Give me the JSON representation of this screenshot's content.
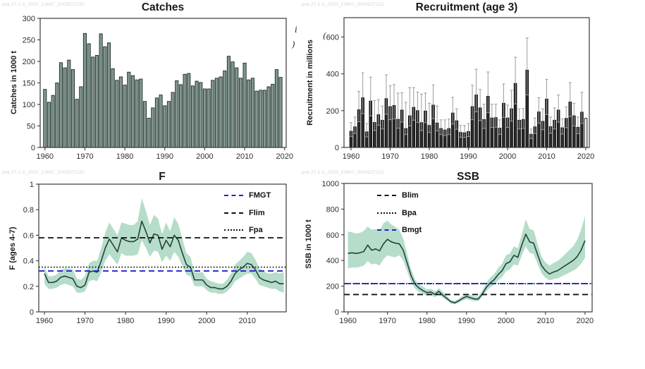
{
  "watermark": {
    "text": "pok.27.1-2_2020_13697_2005527132"
  },
  "stray": {
    "glyphs": [
      "i",
      ")",
      "("
    ]
  },
  "colors": {
    "catch_bar_fill": "#80978f",
    "catch_bar_stroke": "#1f2d29",
    "recr_bar_fill": "#2d2d2d",
    "recr_bar_stroke": "#000000",
    "recr_whisker": "#9b9b9b",
    "recr_open_bar_fill": "#ffffff",
    "band": "#b5ddca",
    "series_line": "#26413b",
    "ref_blue": "#2222cc",
    "ref_black": "#111111",
    "axis": "#3a3a3a",
    "tick_text": "#2e2e2e",
    "title_text": "#1a1a1a"
  },
  "chart_data": [
    {
      "type": "bar",
      "title": "Catches",
      "ylabel": "Catches in 1000 t",
      "x_start": 1960,
      "x_end": 2019,
      "x_step": 1,
      "values": [
        135,
        105,
        121,
        150,
        197,
        185,
        203,
        181,
        112,
        141,
        265,
        241,
        210,
        214,
        264,
        234,
        243,
        183,
        156,
        164,
        145,
        175,
        167,
        157,
        159,
        107,
        68,
        92,
        115,
        122,
        97,
        107,
        128,
        155,
        146,
        170,
        172,
        143,
        154,
        151,
        136,
        136,
        156,
        161,
        164,
        178,
        212,
        199,
        185,
        161,
        196,
        157,
        161,
        131,
        133,
        133,
        141,
        147,
        181,
        163
      ],
      "ylim": [
        0,
        300
      ],
      "yticks": [
        0,
        50,
        100,
        150,
        200,
        250,
        300
      ],
      "xticks": [
        1960,
        1970,
        1980,
        1990,
        2000,
        2010,
        2020
      ],
      "grid": false
    },
    {
      "type": "bar",
      "title": "Recruitment (age 3)",
      "ylabel": "Recruitment in millions",
      "x_start": 1960,
      "x_end": 2020,
      "x_step": 1,
      "values": [
        88,
        112,
        205,
        270,
        85,
        252,
        136,
        178,
        148,
        265,
        222,
        228,
        153,
        203,
        103,
        172,
        218,
        200,
        135,
        198,
        120,
        230,
        133,
        103,
        95,
        103,
        187,
        145,
        82,
        80,
        87,
        222,
        285,
        215,
        152,
        278,
        160,
        162,
        105,
        240,
        160,
        210,
        348,
        148,
        152,
        420,
        72,
        112,
        193,
        142,
        263,
        113,
        148,
        203,
        107,
        158,
        247,
        172,
        110,
        192,
        158
      ],
      "err_hi": [
        135,
        165,
        305,
        405,
        130,
        382,
        255,
        260,
        225,
        395,
        335,
        342,
        295,
        297,
        245,
        325,
        325,
        300,
        290,
        295,
        240,
        340,
        225,
        150,
        150,
        155,
        272,
        210,
        120,
        120,
        130,
        338,
        425,
        315,
        235,
        410,
        235,
        235,
        150,
        345,
        230,
        310,
        490,
        210,
        212,
        595,
        100,
        160,
        270,
        210,
        370,
        165,
        215,
        285,
        155,
        220,
        352,
        240,
        165,
        300,
        null
      ],
      "err_lo_ratio": 0.68,
      "last_bar_open": true,
      "ylim": [
        0,
        705
      ],
      "yticks": [
        0,
        200,
        400,
        600
      ],
      "xticks": [
        1960,
        1970,
        1980,
        1990,
        2000,
        2010,
        2020
      ],
      "grid": false
    },
    {
      "type": "line",
      "title": "F",
      "ylabel": "F (ages 4-7)",
      "x_start": 1960,
      "x_end": 2019,
      "x_step": 1,
      "values": [
        0.3,
        0.23,
        0.23,
        0.24,
        0.27,
        0.28,
        0.27,
        0.26,
        0.2,
        0.19,
        0.21,
        0.31,
        0.32,
        0.31,
        0.4,
        0.5,
        0.57,
        0.52,
        0.47,
        0.58,
        0.56,
        0.55,
        0.55,
        0.57,
        0.71,
        0.63,
        0.54,
        0.61,
        0.6,
        0.49,
        0.56,
        0.51,
        0.6,
        0.56,
        0.46,
        0.37,
        0.35,
        0.25,
        0.25,
        0.25,
        0.21,
        0.19,
        0.19,
        0.18,
        0.18,
        0.2,
        0.24,
        0.3,
        0.33,
        0.35,
        0.38,
        0.37,
        0.33,
        0.27,
        0.25,
        0.24,
        0.23,
        0.24,
        0.22,
        0.22
      ],
      "band_lo": [
        0.22,
        0.18,
        0.18,
        0.19,
        0.21,
        0.22,
        0.21,
        0.2,
        0.15,
        0.15,
        0.16,
        0.24,
        0.25,
        0.24,
        0.31,
        0.4,
        0.45,
        0.41,
        0.37,
        0.46,
        0.44,
        0.44,
        0.44,
        0.45,
        0.56,
        0.5,
        0.43,
        0.48,
        0.47,
        0.39,
        0.44,
        0.4,
        0.47,
        0.43,
        0.36,
        0.29,
        0.28,
        0.2,
        0.2,
        0.2,
        0.17,
        0.15,
        0.15,
        0.14,
        0.14,
        0.16,
        0.19,
        0.24,
        0.26,
        0.28,
        0.3,
        0.3,
        0.26,
        0.21,
        0.2,
        0.19,
        0.18,
        0.18,
        0.16,
        0.15
      ],
      "band_hi": [
        0.35,
        0.28,
        0.28,
        0.29,
        0.33,
        0.34,
        0.34,
        0.33,
        0.26,
        0.25,
        0.28,
        0.38,
        0.4,
        0.4,
        0.5,
        0.62,
        0.7,
        0.65,
        0.6,
        0.7,
        0.69,
        0.68,
        0.68,
        0.71,
        0.89,
        0.79,
        0.68,
        0.76,
        0.73,
        0.61,
        0.7,
        0.63,
        0.74,
        0.69,
        0.57,
        0.46,
        0.43,
        0.31,
        0.31,
        0.31,
        0.26,
        0.24,
        0.23,
        0.22,
        0.22,
        0.25,
        0.3,
        0.37,
        0.4,
        0.43,
        0.47,
        0.46,
        0.41,
        0.34,
        0.32,
        0.3,
        0.3,
        0.31,
        0.3,
        0.31
      ],
      "ylim": [
        0,
        1
      ],
      "yticks": [
        0,
        0.2,
        0.4,
        0.6,
        0.8,
        1
      ],
      "xticks": [
        1960,
        1970,
        1980,
        1990,
        2000,
        2010
      ],
      "ref_lines": [
        {
          "name": "Flim",
          "value": 0.58,
          "style": "dashed",
          "color": "#111111"
        },
        {
          "name": "Fpa",
          "value": 0.35,
          "style": "dotted",
          "color": "#111111"
        },
        {
          "name": "FMGT",
          "value": 0.32,
          "style": "dashed",
          "color": "#2222cc"
        }
      ],
      "legend": [
        {
          "label": "FMGT",
          "style": "dashed",
          "color": "#2222cc"
        },
        {
          "label": "Flim",
          "style": "dashed",
          "color": "#111111"
        },
        {
          "label": "Fpa",
          "style": "dotted",
          "color": "#111111"
        }
      ],
      "legend_position": "top-right",
      "grid": false
    },
    {
      "type": "line",
      "title": "SSB",
      "ylabel": "SSB in 1000 t",
      "x_start": 1960,
      "x_end": 2020,
      "x_step": 1,
      "values": [
        455,
        460,
        455,
        460,
        470,
        520,
        480,
        490,
        475,
        530,
        565,
        545,
        535,
        530,
        480,
        380,
        280,
        215,
        185,
        165,
        150,
        155,
        135,
        160,
        130,
        105,
        80,
        70,
        85,
        105,
        120,
        110,
        100,
        100,
        140,
        190,
        225,
        250,
        290,
        320,
        375,
        390,
        440,
        425,
        520,
        605,
        545,
        535,
        445,
        360,
        320,
        295,
        310,
        320,
        340,
        360,
        380,
        400,
        430,
        480,
        555
      ],
      "band_lo": [
        340,
        345,
        345,
        350,
        360,
        395,
        370,
        375,
        360,
        410,
        440,
        430,
        425,
        440,
        400,
        315,
        230,
        180,
        155,
        140,
        125,
        130,
        115,
        135,
        110,
        90,
        65,
        58,
        70,
        88,
        100,
        92,
        84,
        84,
        118,
        160,
        190,
        210,
        245,
        270,
        315,
        330,
        370,
        360,
        440,
        510,
        460,
        450,
        375,
        300,
        265,
        245,
        255,
        260,
        275,
        290,
        305,
        320,
        340,
        375,
        420
      ],
      "band_hi": [
        625,
        620,
        610,
        615,
        630,
        665,
        640,
        645,
        630,
        690,
        710,
        680,
        660,
        640,
        570,
        450,
        330,
        250,
        215,
        195,
        175,
        180,
        160,
        185,
        155,
        125,
        95,
        85,
        100,
        125,
        140,
        130,
        120,
        120,
        165,
        225,
        265,
        295,
        340,
        375,
        440,
        455,
        510,
        495,
        605,
        720,
        645,
        635,
        530,
        430,
        385,
        360,
        380,
        395,
        420,
        450,
        480,
        510,
        560,
        640,
        745
      ],
      "ylim": [
        0,
        1000
      ],
      "yticks": [
        0,
        200,
        400,
        600,
        800,
        1000
      ],
      "xticks": [
        1960,
        1970,
        1980,
        1990,
        2000,
        2010,
        2020
      ],
      "ref_lines": [
        {
          "name": "Bpa",
          "value": 220,
          "style": "dotted",
          "color": "#111111"
        },
        {
          "name": "Blim",
          "value": 135,
          "style": "dashed",
          "color": "#111111"
        },
        {
          "name": "Bmgt",
          "value": 220,
          "style": "dashed",
          "color": "#2222cc"
        }
      ],
      "legend": [
        {
          "label": "Blim",
          "style": "dashed",
          "color": "#111111"
        },
        {
          "label": "Bpa",
          "style": "dotted",
          "color": "#111111"
        },
        {
          "label": "Bmgt",
          "style": "dashed",
          "color": "#2222cc"
        }
      ],
      "legend_position": "top-left",
      "grid": false
    }
  ]
}
